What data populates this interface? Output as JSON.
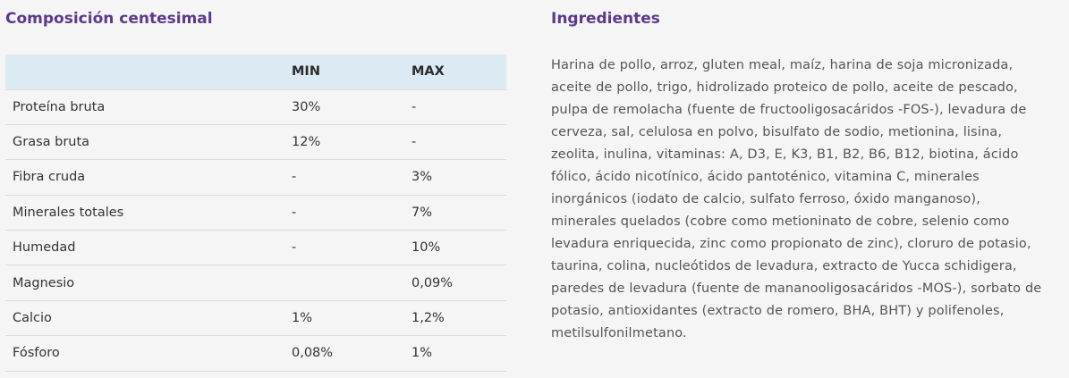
{
  "composition": {
    "title": "Composición centesimal",
    "columns": [
      "",
      "MIN",
      "MAX"
    ],
    "rows": [
      {
        "name": "Proteína bruta",
        "min": "30%",
        "max": "-"
      },
      {
        "name": "Grasa bruta",
        "min": "12%",
        "max": "-"
      },
      {
        "name": "Fibra cruda",
        "min": "-",
        "max": "3%"
      },
      {
        "name": "Minerales totales",
        "min": "-",
        "max": "7%"
      },
      {
        "name": "Humedad",
        "min": "-",
        "max": "10%"
      },
      {
        "name": "Magnesio",
        "min": "",
        "max": "0,09%"
      },
      {
        "name": "Calcio",
        "min": "1%",
        "max": "1,2%"
      },
      {
        "name": "Fósforo",
        "min": "0,08%",
        "max": "1%"
      }
    ]
  },
  "ingredients": {
    "title": "Ingredientes",
    "text": "Harina de pollo, arroz, gluten meal, maíz, harina de soja micronizada, aceite de pollo, trigo, hidrolizado proteico de pollo, aceite de pescado, pulpa de remolacha (fuente de fructooligosacáridos -FOS-), levadura de cerveza, sal, celulosa en polvo, bisulfato de sodio, metionina, lisina, zeolita, inulina, vitaminas: A, D3, E, K3, B1, B2, B6, B12, biotina, ácido fólico, ácido nicotínico, ácido pantoténico, vitamina C, minerales inorgánicos (iodato de calcio, sulfato ferroso, óxido manganoso), minerales quelados (cobre como metioninato de cobre, selenio como levadura enriquecida, zinc como propionato de zinc), cloruro de potasio, taurina, colina, nucleótidos de levadura, extracto de Yucca schidigera, paredes de levadura (fuente de mananooligosacáridos -MOS-), sorbato de potasio, antioxidantes (extracto de romero, BHA, BHT) y polifenoles, metilsulfonilmetano."
  },
  "colors": {
    "title": "#5b3a8e",
    "table_header_bg": "#dbeaf3",
    "row_divider": "#dcdcdc",
    "background": "#f5f5f5",
    "body_text": "#555555"
  }
}
